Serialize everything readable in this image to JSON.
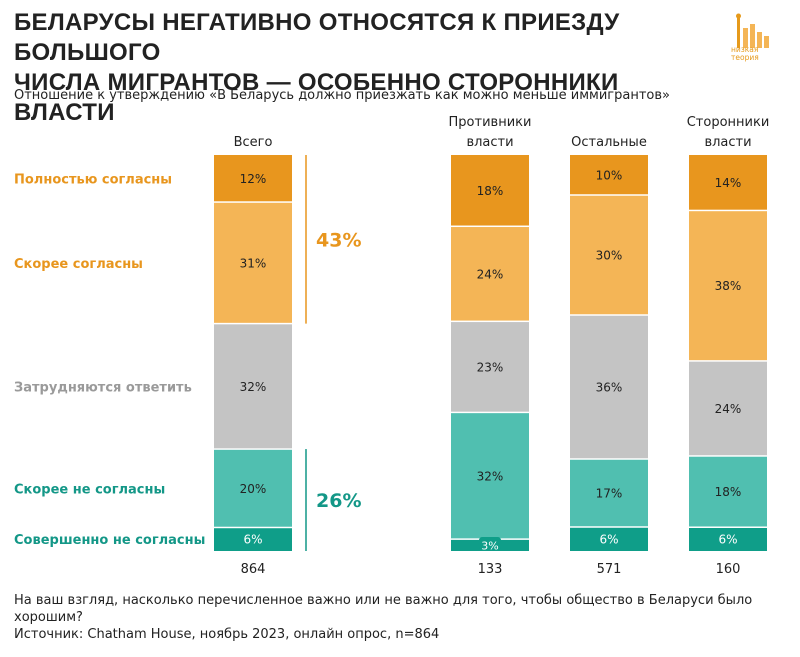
{
  "title_lines": [
    "БЕЛАРУСЫ НЕГАТИВНО ОТНОСЯТСЯ К ПРИЕЗДУ БОЛЬШОГО",
    "ЧИСЛА МИГРАНТОВ — ОСОБЕННО СТОРОННИКИ ВЛАСТИ"
  ],
  "subtitle": "Отношение к утверждению «В Беларусь должно приезжать как можно меньше иммигрантов»",
  "logo": {
    "text_line1": "низкая",
    "text_line2": "теория",
    "color": "#E69A1B"
  },
  "footer": {
    "question": "На ваш взгляд, насколько перечисленное важно или не важно для того, чтобы общество в Беларуси было хорошим?",
    "source": "Источник: Chatham House, ноябрь 2023, онлайн опрос, n=864"
  },
  "chart_data": {
    "type": "bar",
    "stacked": true,
    "normalized_percent": true,
    "categories": [
      "Всего",
      "Противники власти",
      "Остальные",
      "Сторонники власти"
    ],
    "category_lines": [
      [
        "Всего"
      ],
      [
        "Противники",
        "власти"
      ],
      [
        "Остальные"
      ],
      [
        "Сторонники",
        "власти"
      ]
    ],
    "sample_sizes": [
      "864",
      "133",
      "571",
      "160"
    ],
    "series": [
      {
        "name": "Полностью согласны",
        "color": "#E8961E",
        "label_color": "#E8961E",
        "values": [
          12,
          18,
          10,
          14
        ],
        "labels": [
          "12%",
          "18%",
          "10%",
          "14%"
        ]
      },
      {
        "name": "Скорее согласны",
        "color": "#F4B556",
        "label_color": "#E8961E",
        "values": [
          31,
          24,
          30,
          38
        ],
        "labels": [
          "31%",
          "24%",
          "30%",
          "38%"
        ]
      },
      {
        "name": "Затрудняются ответить",
        "color": "#C4C4C4",
        "label_color": "#9A9A9A",
        "values": [
          32,
          23,
          36,
          24
        ],
        "labels": [
          "32%",
          "23%",
          "36%",
          "24%"
        ]
      },
      {
        "name": "Скорее не согласны",
        "color": "#50BFB0",
        "label_color": "#139787",
        "values": [
          20,
          32,
          17,
          18
        ],
        "labels": [
          "20%",
          "32%",
          "17%",
          "18%"
        ]
      },
      {
        "name": "Совершенно не согласны",
        "color": "#0F9E89",
        "label_color": "#139787",
        "values": [
          6,
          3,
          6,
          6
        ],
        "labels": [
          "6%",
          "3%",
          "6%",
          "6%"
        ]
      }
    ],
    "annotations": [
      {
        "text": "43%",
        "series": [
          0,
          1
        ],
        "category": 0,
        "color": "#E8961E"
      },
      {
        "text": "26%",
        "series": [
          3,
          4
        ],
        "category": 0,
        "color": "#139787"
      }
    ]
  }
}
